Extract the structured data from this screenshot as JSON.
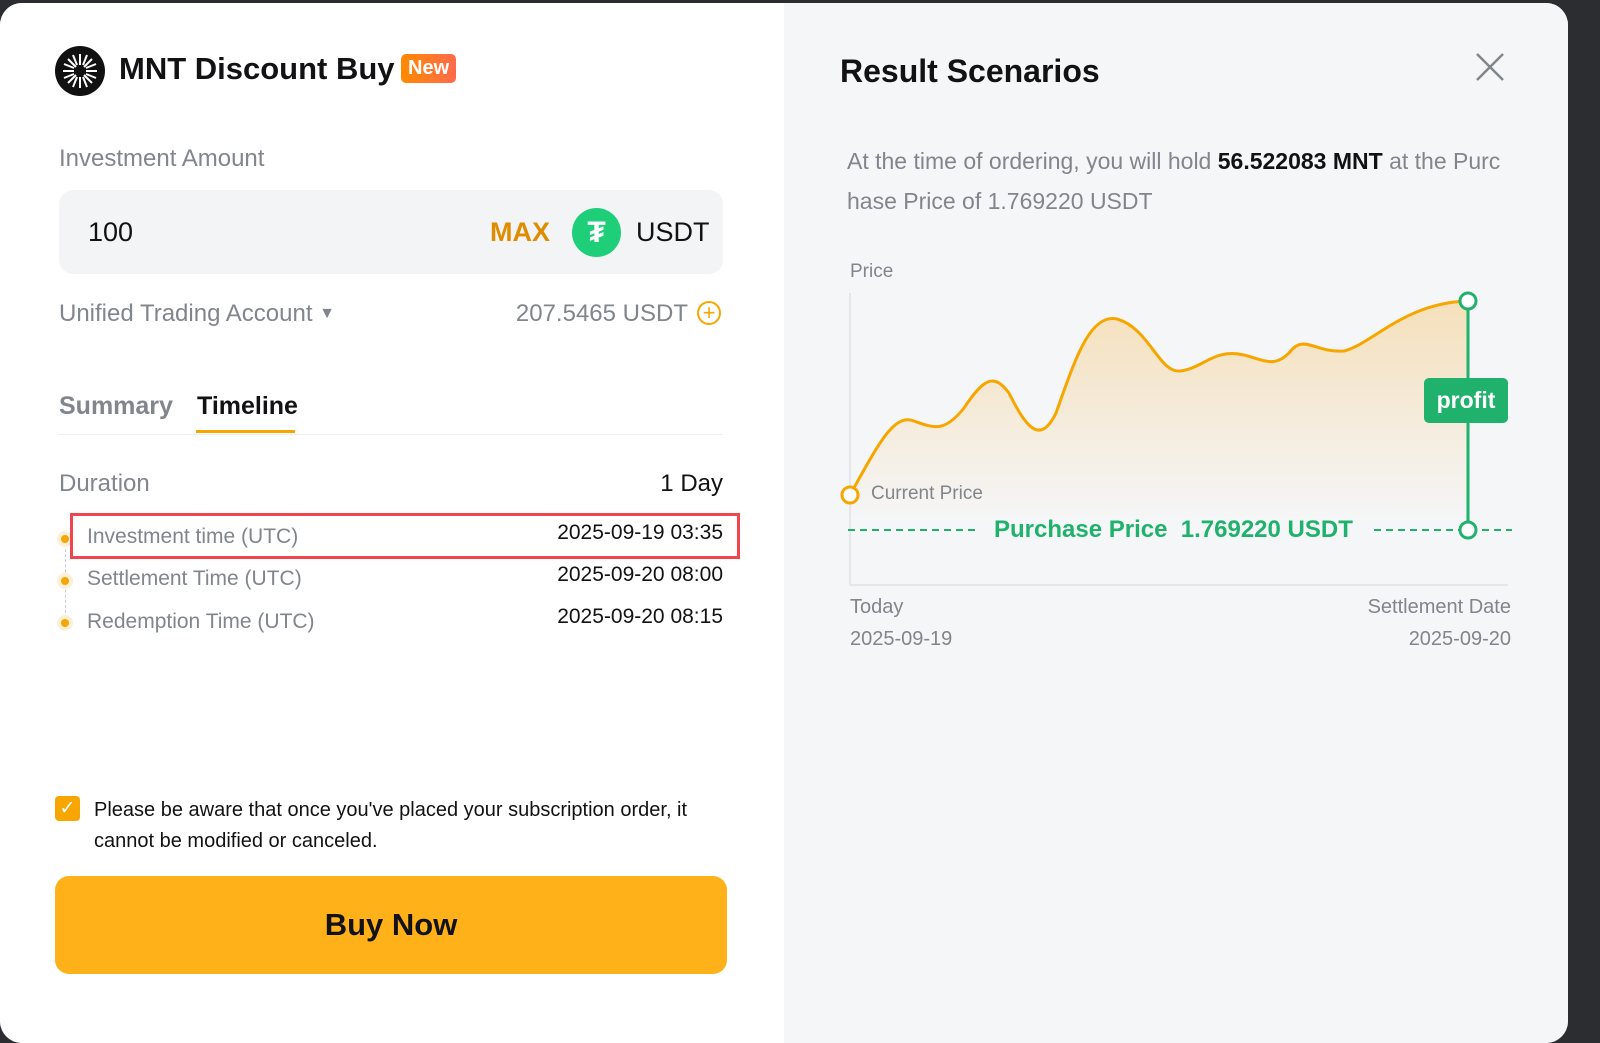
{
  "header": {
    "title": "MNT Discount Buy",
    "badge": "New"
  },
  "investment": {
    "label": "Investment Amount",
    "value": "100",
    "max_label": "MAX",
    "currency": "USDT",
    "account": "Unified Trading Account",
    "balance": "207.5465 USDT"
  },
  "tabs": [
    {
      "label": "Summary",
      "active": false
    },
    {
      "label": "Timeline",
      "active": true
    }
  ],
  "timeline": {
    "duration_label": "Duration",
    "duration_value": "1 Day",
    "rows": [
      {
        "label": "Investment time (UTC)",
        "value": "2025-09-19 03:35"
      },
      {
        "label": "Settlement Time (UTC)",
        "value": "2025-09-20 08:00"
      },
      {
        "label": "Redemption Time (UTC)",
        "value": "2025-09-20 08:15"
      }
    ]
  },
  "disclaimer": "Please be aware that once you've placed your subscription order, it cannot be modified or canceled.",
  "buy_label": "Buy Now",
  "scenarios": {
    "title": "Result Scenarios",
    "desc_pre": "At the time of ordering, you will hold ",
    "desc_amount": "56.522083 MNT",
    "desc_post": " at the Purchase Price of 1.769220 USDT",
    "chart": {
      "y_label": "Price",
      "current_price_label": "Current Price",
      "purchase_price_label": "Purchase Price  1.769220 USDT",
      "profit_label": "profit",
      "x_start_label": "Today",
      "x_start_date": "2025-09-19",
      "x_end_label": "Settlement Date",
      "x_end_date": "2025-09-20"
    }
  },
  "colors": {
    "accent": "#f7a600",
    "profit": "#20b26c",
    "highlight": "#f0454f"
  }
}
